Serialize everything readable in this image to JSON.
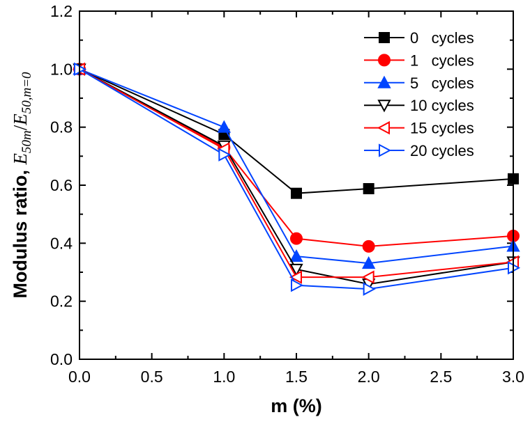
{
  "chart_data": {
    "type": "line",
    "xlabel": "m (%)",
    "ylabel": {
      "prefix": "Modulus ratio,",
      "e1": "E",
      "sub1": "50m",
      "slash": "/",
      "e2": "E",
      "sub2": "50,m=0"
    },
    "xlim": [
      0,
      3.0
    ],
    "ylim": [
      0,
      1.2
    ],
    "xticks": [
      "0.0",
      "0.5",
      "1.0",
      "1.5",
      "2.0",
      "2.5",
      "3.0"
    ],
    "yticks": [
      "0.0",
      "0.2",
      "0.4",
      "0.6",
      "0.8",
      "1.0",
      "1.2"
    ],
    "grid": false,
    "legend_position": "top-right",
    "x": [
      0,
      1.0,
      1.5,
      2.0,
      3.0
    ],
    "series": [
      {
        "name": "0   cycles",
        "color": "#000000",
        "marker": "square-filled",
        "values": [
          1.0,
          0.775,
          0.572,
          0.588,
          0.622
        ]
      },
      {
        "name": "1   cycles",
        "color": "#ff0000",
        "marker": "circle-filled",
        "values": [
          1.0,
          0.73,
          0.416,
          0.389,
          0.425
        ]
      },
      {
        "name": "5   cycles",
        "color": "#0044ff",
        "marker": "triangle-up-filled",
        "values": [
          1.0,
          0.8,
          0.355,
          0.331,
          0.39
        ]
      },
      {
        "name": "10 cycles",
        "color": "#000000",
        "marker": "triangle-down-open",
        "values": [
          1.0,
          0.735,
          0.31,
          0.259,
          0.335
        ]
      },
      {
        "name": "15 cycles",
        "color": "#ff0000",
        "marker": "triangle-left-open",
        "values": [
          1.0,
          0.725,
          0.283,
          0.283,
          0.335
        ]
      },
      {
        "name": "20 cycles",
        "color": "#0044ff",
        "marker": "triangle-right-open",
        "values": [
          1.0,
          0.705,
          0.255,
          0.242,
          0.315
        ]
      }
    ]
  }
}
